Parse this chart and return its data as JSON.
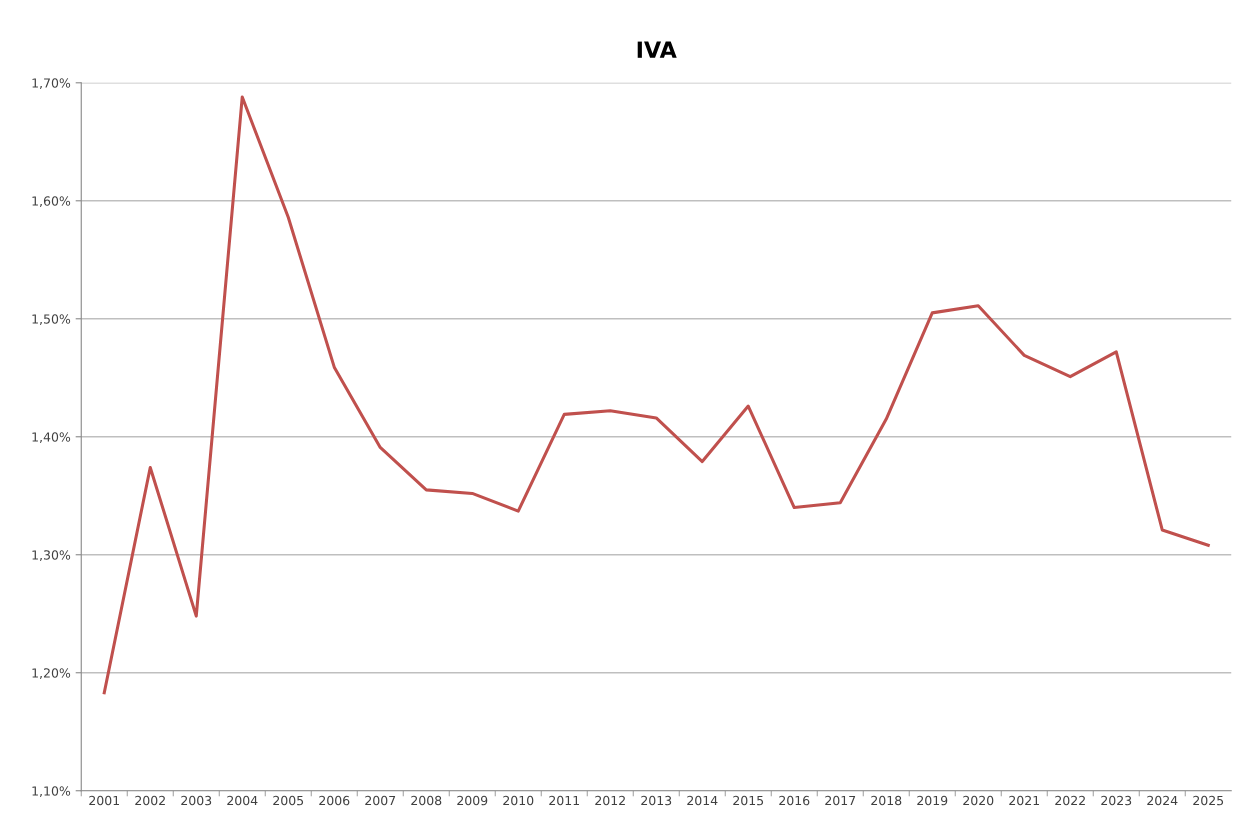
{
  "chart_data": {
    "type": "line",
    "title": "IVA",
    "categories": [
      "2001",
      "2002",
      "2003",
      "2004",
      "2005",
      "2006",
      "2007",
      "2008",
      "2009",
      "2010",
      "2011",
      "2012",
      "2013",
      "2014",
      "2015",
      "2016",
      "2017",
      "2018",
      "2019",
      "2020",
      "2021",
      "2022",
      "2023",
      "2024",
      "2025"
    ],
    "series": [
      {
        "color": "#c0504d",
        "values": [
          1.183,
          1.374,
          1.248,
          1.688,
          1.586,
          1.459,
          1.391,
          1.355,
          1.352,
          1.337,
          1.419,
          1.422,
          1.416,
          1.379,
          1.426,
          1.34,
          1.344,
          1.415,
          1.505,
          1.511,
          1.469,
          1.451,
          1.472,
          1.321,
          1.308
        ]
      }
    ],
    "ylim": [
      1.1,
      1.7
    ],
    "yticks": [
      {
        "value": 1.1,
        "label": "1,10%"
      },
      {
        "value": 1.2,
        "label": "1,20%"
      },
      {
        "value": 1.3,
        "label": "1,30%"
      },
      {
        "value": 1.4,
        "label": "1,40%"
      },
      {
        "value": 1.5,
        "label": "1,50%"
      },
      {
        "value": 1.6,
        "label": "1,60%"
      },
      {
        "value": 1.7,
        "label": "1,70%"
      }
    ],
    "grid": "y",
    "legend": false,
    "marker": "none",
    "line_style": "solid"
  }
}
